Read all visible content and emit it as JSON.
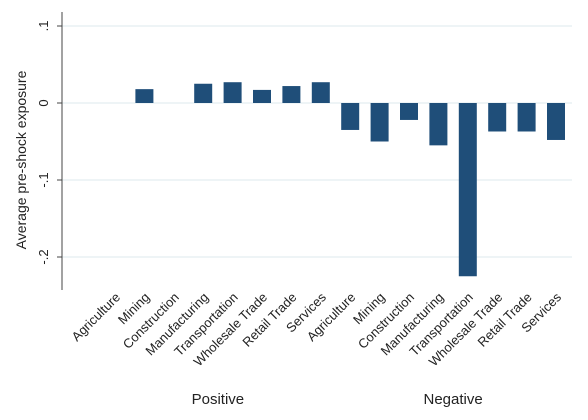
{
  "chart_data": {
    "type": "bar",
    "title": "",
    "xlabel": "",
    "ylabel": "Average pre-shock exposure",
    "ylim": [
      -0.245,
      0.12
    ],
    "yticks": [
      {
        "value": 0.1,
        "label": ".1"
      },
      {
        "value": 0.0,
        "label": "0"
      },
      {
        "value": -0.1,
        "label": "-.1"
      },
      {
        "value": -0.2,
        "label": "-.2"
      }
    ],
    "grid": true,
    "bar_color": "#1f4e79",
    "grid_color": "#dce8ee",
    "groups": [
      {
        "label": "Positive",
        "categories": [
          "Agriculture",
          "Mining",
          "Construction",
          "Manufacturing",
          "Transportation",
          "Wholesale Trade",
          "Retail Trade",
          "Services"
        ],
        "values": [
          null,
          0.018,
          null,
          0.025,
          0.027,
          0.017,
          0.022,
          0.027
        ]
      },
      {
        "label": "Negative",
        "categories": [
          "Agriculture",
          "Mining",
          "Construction",
          "Manufacturing",
          "Transportation",
          "Wholesale Trade",
          "Retail Trade",
          "Services"
        ],
        "values": [
          -0.035,
          -0.05,
          -0.022,
          -0.055,
          -0.225,
          -0.037,
          -0.037,
          -0.048
        ]
      }
    ]
  }
}
